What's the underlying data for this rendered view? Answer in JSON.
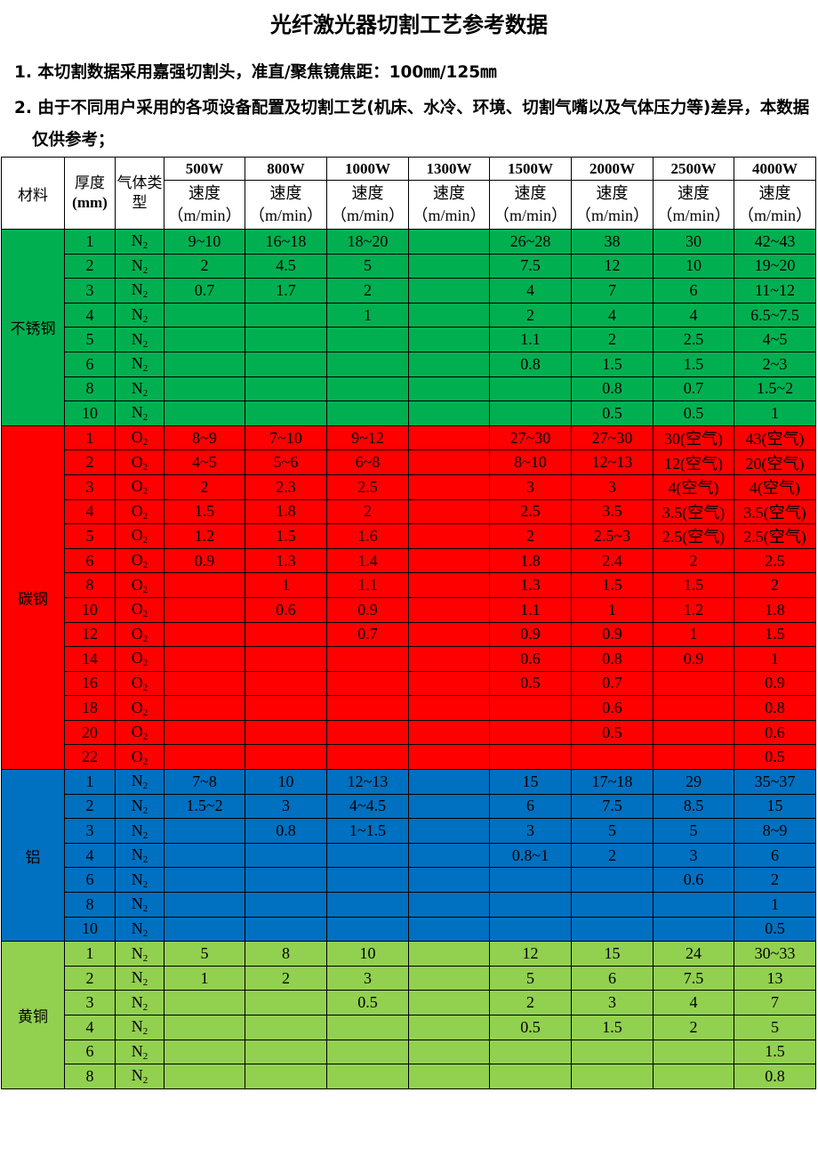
{
  "title": "光纤激光器切割工艺参考数据",
  "notes": [
    "1. 本切割数据采用嘉强切割头，准直/聚焦镜焦距：100㎜/125㎜",
    "2. 由于不同用户采用的各项设备配置及切割工艺(机床、水冷、环境、切割气嘴以及气体压力等)差异，本数据仅供参考；"
  ],
  "table": {
    "headers": {
      "material": "材料",
      "thickness": "厚度",
      "thickness_unit": "(mm)",
      "gas": "气体类型",
      "speed": "速度",
      "speed_unit": "（m/min）"
    },
    "powers": [
      "500W",
      "800W",
      "1000W",
      "1300W",
      "1500W",
      "2000W",
      "2500W",
      "4000W"
    ],
    "groups": [
      {
        "material": "不锈钢",
        "color": "#00b050",
        "gas_symbol": "N",
        "gas_sub": "2",
        "rows": [
          {
            "thickness": "1",
            "speeds": [
              "9~10",
              "16~18",
              "18~20",
              "",
              "26~28",
              "38",
              "30",
              "42~43"
            ]
          },
          {
            "thickness": "2",
            "speeds": [
              "2",
              "4.5",
              "5",
              "",
              "7.5",
              "12",
              "10",
              "19~20"
            ]
          },
          {
            "thickness": "3",
            "speeds": [
              "0.7",
              "1.7",
              "2",
              "",
              "4",
              "7",
              "6",
              "11~12"
            ]
          },
          {
            "thickness": "4",
            "speeds": [
              "",
              "",
              "1",
              "",
              "2",
              "4",
              "4",
              "6.5~7.5"
            ]
          },
          {
            "thickness": "5",
            "speeds": [
              "",
              "",
              "",
              "",
              "1.1",
              "2",
              "2.5",
              "4~5"
            ]
          },
          {
            "thickness": "6",
            "speeds": [
              "",
              "",
              "",
              "",
              "0.8",
              "1.5",
              "1.5",
              "2~3"
            ]
          },
          {
            "thickness": "8",
            "speeds": [
              "",
              "",
              "",
              "",
              "",
              "0.8",
              "0.7",
              "1.5~2"
            ]
          },
          {
            "thickness": "10",
            "speeds": [
              "",
              "",
              "",
              "",
              "",
              "0.5",
              "0.5",
              "1"
            ]
          }
        ]
      },
      {
        "material": "碳钢",
        "color": "#ff0000",
        "gas_symbol": "O",
        "gas_sub": "2",
        "rows": [
          {
            "thickness": "1",
            "speeds": [
              "8~9",
              "7~10",
              "9~12",
              "",
              "27~30",
              "27~30",
              "30(空气)",
              "43(空气)"
            ]
          },
          {
            "thickness": "2",
            "speeds": [
              "4~5",
              "5~6",
              "6~8",
              "",
              "8~10",
              "12~13",
              "12(空气)",
              "20(空气)"
            ]
          },
          {
            "thickness": "3",
            "speeds": [
              "2",
              "2.3",
              "2.5",
              "",
              "3",
              "3",
              "4(空气)",
              "4(空气)"
            ]
          },
          {
            "thickness": "4",
            "speeds": [
              "1.5",
              "1.8",
              "2",
              "",
              "2.5",
              "3.5",
              "3.5(空气)",
              "3.5(空气)"
            ]
          },
          {
            "thickness": "5",
            "speeds": [
              "1.2",
              "1.5",
              "1.6",
              "",
              "2",
              "2.5~3",
              "2.5(空气)",
              "2.5(空气)"
            ]
          },
          {
            "thickness": "6",
            "speeds": [
              "0.9",
              "1.3",
              "1.4",
              "",
              "1.8",
              "2.4",
              "2",
              "2.5"
            ]
          },
          {
            "thickness": "8",
            "speeds": [
              "",
              "1",
              "1.1",
              "",
              "1.3",
              "1.5",
              "1.5",
              "2"
            ]
          },
          {
            "thickness": "10",
            "speeds": [
              "",
              "0.6",
              "0.9",
              "",
              "1.1",
              "1",
              "1.2",
              "1.8"
            ]
          },
          {
            "thickness": "12",
            "speeds": [
              "",
              "",
              "0.7",
              "",
              "0.9",
              "0.9",
              "1",
              "1.5"
            ]
          },
          {
            "thickness": "14",
            "speeds": [
              "",
              "",
              "",
              "",
              "0.6",
              "0.8",
              "0.9",
              "1"
            ]
          },
          {
            "thickness": "16",
            "speeds": [
              "",
              "",
              "",
              "",
              "0.5",
              "0.7",
              "",
              "0.9"
            ]
          },
          {
            "thickness": "18",
            "speeds": [
              "",
              "",
              "",
              "",
              "",
              "0.6",
              "",
              "0.8"
            ]
          },
          {
            "thickness": "20",
            "speeds": [
              "",
              "",
              "",
              "",
              "",
              "0.5",
              "",
              "0.6"
            ]
          },
          {
            "thickness": "22",
            "speeds": [
              "",
              "",
              "",
              "",
              "",
              "",
              "",
              "0.5"
            ]
          }
        ]
      },
      {
        "material": "铝",
        "color": "#0070c0",
        "gas_symbol": "N",
        "gas_sub": "2",
        "rows": [
          {
            "thickness": "1",
            "speeds": [
              "7~8",
              "10",
              "12~13",
              "",
              "15",
              "17~18",
              "29",
              "35~37"
            ]
          },
          {
            "thickness": "2",
            "speeds": [
              "1.5~2",
              "3",
              "4~4.5",
              "",
              "6",
              "7.5",
              "8.5",
              "15"
            ]
          },
          {
            "thickness": "3",
            "speeds": [
              "",
              "0.8",
              "1~1.5",
              "",
              "3",
              "5",
              "5",
              "8~9"
            ]
          },
          {
            "thickness": "4",
            "speeds": [
              "",
              "",
              "",
              "",
              "0.8~1",
              "2",
              "3",
              "6"
            ]
          },
          {
            "thickness": "6",
            "speeds": [
              "",
              "",
              "",
              "",
              "",
              "",
              "0.6",
              "2"
            ]
          },
          {
            "thickness": "8",
            "speeds": [
              "",
              "",
              "",
              "",
              "",
              "",
              "",
              "1"
            ]
          },
          {
            "thickness": "10",
            "speeds": [
              "",
              "",
              "",
              "",
              "",
              "",
              "",
              "0.5"
            ]
          }
        ]
      },
      {
        "material": "黄铜",
        "color": "#92d050",
        "gas_symbol": "N",
        "gas_sub": "2",
        "rows": [
          {
            "thickness": "1",
            "speeds": [
              "5",
              "8",
              "10",
              "",
              "12",
              "15",
              "24",
              "30~33"
            ]
          },
          {
            "thickness": "2",
            "speeds": [
              "1",
              "2",
              "3",
              "",
              "5",
              "6",
              "7.5",
              "13"
            ]
          },
          {
            "thickness": "3",
            "speeds": [
              "",
              "",
              "0.5",
              "",
              "2",
              "3",
              "4",
              "7"
            ]
          },
          {
            "thickness": "4",
            "speeds": [
              "",
              "",
              "",
              "",
              "0.5",
              "1.5",
              "2",
              "5"
            ]
          },
          {
            "thickness": "6",
            "speeds": [
              "",
              "",
              "",
              "",
              "",
              "",
              "",
              "1.5"
            ]
          },
          {
            "thickness": "8",
            "speeds": [
              "",
              "",
              "",
              "",
              "",
              "",
              "",
              "0.8"
            ]
          }
        ]
      }
    ]
  }
}
